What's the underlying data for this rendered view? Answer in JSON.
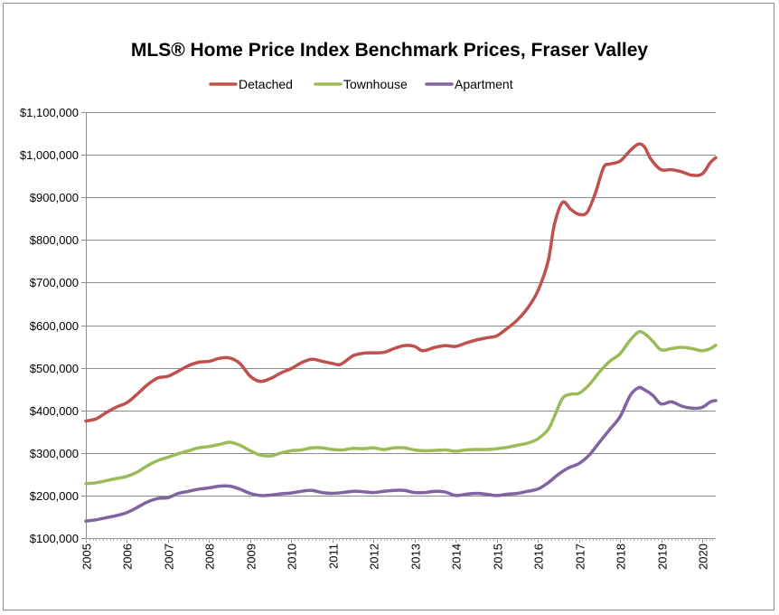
{
  "chart_data": {
    "type": "line",
    "title": "MLS® Home Price Index Benchmark Prices, Fraser Valley",
    "xlabel": "",
    "ylabel": "",
    "xlim": [
      2005,
      2020.33
    ],
    "ylim": [
      100000,
      1100000
    ],
    "y_ticks": [
      100000,
      200000,
      300000,
      400000,
      500000,
      600000,
      700000,
      800000,
      900000,
      1000000,
      1100000
    ],
    "y_tick_labels": [
      "$100,000",
      "$200,000",
      "$300,000",
      "$400,000",
      "$500,000",
      "$600,000",
      "$700,000",
      "$800,000",
      "$900,000",
      "$1,000,000",
      "$1,100,000"
    ],
    "x_ticks": [
      2005,
      2006,
      2007,
      2008,
      2009,
      2010,
      2011,
      2012,
      2013,
      2014,
      2015,
      2016,
      2017,
      2018,
      2019,
      2020
    ],
    "x_tick_labels": [
      "2005",
      "2006",
      "2007",
      "2008",
      "2009",
      "2010",
      "2011",
      "2012",
      "2013",
      "2014",
      "2015",
      "2016",
      "2017",
      "2018",
      "2019",
      "2020"
    ],
    "grid": true,
    "legend_position": "top",
    "series": [
      {
        "name": "Detached",
        "color": "#c0504d",
        "points": [
          [
            2005.0,
            375000
          ],
          [
            2005.25,
            380000
          ],
          [
            2005.5,
            395000
          ],
          [
            2005.75,
            408000
          ],
          [
            2006.0,
            418000
          ],
          [
            2006.25,
            438000
          ],
          [
            2006.5,
            460000
          ],
          [
            2006.75,
            476000
          ],
          [
            2007.0,
            480000
          ],
          [
            2007.25,
            492000
          ],
          [
            2007.5,
            505000
          ],
          [
            2007.75,
            513000
          ],
          [
            2008.0,
            515000
          ],
          [
            2008.25,
            522000
          ],
          [
            2008.5,
            523000
          ],
          [
            2008.75,
            510000
          ],
          [
            2009.0,
            480000
          ],
          [
            2009.25,
            468000
          ],
          [
            2009.5,
            475000
          ],
          [
            2009.75,
            488000
          ],
          [
            2010.0,
            498000
          ],
          [
            2010.25,
            512000
          ],
          [
            2010.5,
            520000
          ],
          [
            2010.75,
            515000
          ],
          [
            2011.0,
            510000
          ],
          [
            2011.2,
            508000
          ],
          [
            2011.5,
            528000
          ],
          [
            2011.75,
            534000
          ],
          [
            2012.0,
            535000
          ],
          [
            2012.25,
            536000
          ],
          [
            2012.5,
            545000
          ],
          [
            2012.75,
            552000
          ],
          [
            2013.0,
            550000
          ],
          [
            2013.2,
            540000
          ],
          [
            2013.5,
            548000
          ],
          [
            2013.75,
            552000
          ],
          [
            2014.0,
            550000
          ],
          [
            2014.25,
            558000
          ],
          [
            2014.5,
            565000
          ],
          [
            2014.75,
            570000
          ],
          [
            2015.0,
            575000
          ],
          [
            2015.25,
            592000
          ],
          [
            2015.5,
            612000
          ],
          [
            2015.75,
            640000
          ],
          [
            2016.0,
            680000
          ],
          [
            2016.25,
            750000
          ],
          [
            2016.4,
            835000
          ],
          [
            2016.6,
            888000
          ],
          [
            2016.8,
            872000
          ],
          [
            2017.0,
            860000
          ],
          [
            2017.2,
            865000
          ],
          [
            2017.4,
            910000
          ],
          [
            2017.6,
            970000
          ],
          [
            2017.75,
            978000
          ],
          [
            2018.0,
            985000
          ],
          [
            2018.25,
            1010000
          ],
          [
            2018.45,
            1025000
          ],
          [
            2018.6,
            1018000
          ],
          [
            2018.75,
            990000
          ],
          [
            2019.0,
            965000
          ],
          [
            2019.25,
            965000
          ],
          [
            2019.5,
            960000
          ],
          [
            2019.75,
            952000
          ],
          [
            2020.0,
            955000
          ],
          [
            2020.2,
            982000
          ],
          [
            2020.33,
            993000
          ]
        ]
      },
      {
        "name": "Townhouse",
        "color": "#9bbb59",
        "points": [
          [
            2005.0,
            228000
          ],
          [
            2005.25,
            230000
          ],
          [
            2005.5,
            235000
          ],
          [
            2005.75,
            240000
          ],
          [
            2006.0,
            245000
          ],
          [
            2006.25,
            255000
          ],
          [
            2006.5,
            270000
          ],
          [
            2006.75,
            282000
          ],
          [
            2007.0,
            290000
          ],
          [
            2007.25,
            298000
          ],
          [
            2007.5,
            305000
          ],
          [
            2007.75,
            312000
          ],
          [
            2008.0,
            315000
          ],
          [
            2008.25,
            320000
          ],
          [
            2008.5,
            325000
          ],
          [
            2008.75,
            318000
          ],
          [
            2009.0,
            305000
          ],
          [
            2009.25,
            295000
          ],
          [
            2009.5,
            293000
          ],
          [
            2009.75,
            300000
          ],
          [
            2010.0,
            305000
          ],
          [
            2010.25,
            307000
          ],
          [
            2010.5,
            312000
          ],
          [
            2010.75,
            312000
          ],
          [
            2011.0,
            308000
          ],
          [
            2011.25,
            307000
          ],
          [
            2011.5,
            311000
          ],
          [
            2011.75,
            310000
          ],
          [
            2012.0,
            312000
          ],
          [
            2012.25,
            308000
          ],
          [
            2012.5,
            312000
          ],
          [
            2012.75,
            312000
          ],
          [
            2013.0,
            307000
          ],
          [
            2013.25,
            305000
          ],
          [
            2013.5,
            306000
          ],
          [
            2013.75,
            307000
          ],
          [
            2014.0,
            304000
          ],
          [
            2014.25,
            307000
          ],
          [
            2014.5,
            308000
          ],
          [
            2014.75,
            308000
          ],
          [
            2015.0,
            310000
          ],
          [
            2015.25,
            313000
          ],
          [
            2015.5,
            318000
          ],
          [
            2015.75,
            323000
          ],
          [
            2016.0,
            333000
          ],
          [
            2016.25,
            355000
          ],
          [
            2016.4,
            385000
          ],
          [
            2016.6,
            428000
          ],
          [
            2016.8,
            438000
          ],
          [
            2017.0,
            440000
          ],
          [
            2017.25,
            460000
          ],
          [
            2017.5,
            490000
          ],
          [
            2017.75,
            515000
          ],
          [
            2018.0,
            533000
          ],
          [
            2018.25,
            565000
          ],
          [
            2018.45,
            584000
          ],
          [
            2018.6,
            580000
          ],
          [
            2018.8,
            562000
          ],
          [
            2019.0,
            542000
          ],
          [
            2019.25,
            545000
          ],
          [
            2019.5,
            548000
          ],
          [
            2019.75,
            545000
          ],
          [
            2020.0,
            540000
          ],
          [
            2020.2,
            545000
          ],
          [
            2020.33,
            553000
          ]
        ]
      },
      {
        "name": "Apartment",
        "color": "#8064a2",
        "points": [
          [
            2005.0,
            140000
          ],
          [
            2005.25,
            143000
          ],
          [
            2005.5,
            148000
          ],
          [
            2005.75,
            153000
          ],
          [
            2006.0,
            160000
          ],
          [
            2006.25,
            172000
          ],
          [
            2006.5,
            185000
          ],
          [
            2006.75,
            193000
          ],
          [
            2007.0,
            195000
          ],
          [
            2007.25,
            205000
          ],
          [
            2007.5,
            210000
          ],
          [
            2007.75,
            215000
          ],
          [
            2008.0,
            218000
          ],
          [
            2008.25,
            222000
          ],
          [
            2008.5,
            222000
          ],
          [
            2008.75,
            215000
          ],
          [
            2009.0,
            205000
          ],
          [
            2009.25,
            200000
          ],
          [
            2009.5,
            201000
          ],
          [
            2009.75,
            204000
          ],
          [
            2010.0,
            206000
          ],
          [
            2010.25,
            210000
          ],
          [
            2010.5,
            212000
          ],
          [
            2010.75,
            207000
          ],
          [
            2011.0,
            205000
          ],
          [
            2011.25,
            207000
          ],
          [
            2011.5,
            210000
          ],
          [
            2011.75,
            209000
          ],
          [
            2012.0,
            207000
          ],
          [
            2012.25,
            210000
          ],
          [
            2012.5,
            212000
          ],
          [
            2012.75,
            212000
          ],
          [
            2013.0,
            207000
          ],
          [
            2013.25,
            207000
          ],
          [
            2013.5,
            210000
          ],
          [
            2013.75,
            208000
          ],
          [
            2014.0,
            200000
          ],
          [
            2014.25,
            203000
          ],
          [
            2014.5,
            205000
          ],
          [
            2014.75,
            203000
          ],
          [
            2015.0,
            200000
          ],
          [
            2015.25,
            203000
          ],
          [
            2015.5,
            205000
          ],
          [
            2015.75,
            210000
          ],
          [
            2016.0,
            215000
          ],
          [
            2016.25,
            230000
          ],
          [
            2016.5,
            250000
          ],
          [
            2016.75,
            265000
          ],
          [
            2017.0,
            275000
          ],
          [
            2017.25,
            295000
          ],
          [
            2017.5,
            325000
          ],
          [
            2017.75,
            355000
          ],
          [
            2018.0,
            385000
          ],
          [
            2018.25,
            435000
          ],
          [
            2018.45,
            453000
          ],
          [
            2018.6,
            448000
          ],
          [
            2018.8,
            435000
          ],
          [
            2019.0,
            415000
          ],
          [
            2019.25,
            420000
          ],
          [
            2019.5,
            410000
          ],
          [
            2019.75,
            405000
          ],
          [
            2020.0,
            407000
          ],
          [
            2020.2,
            420000
          ],
          [
            2020.33,
            423000
          ]
        ]
      }
    ]
  }
}
